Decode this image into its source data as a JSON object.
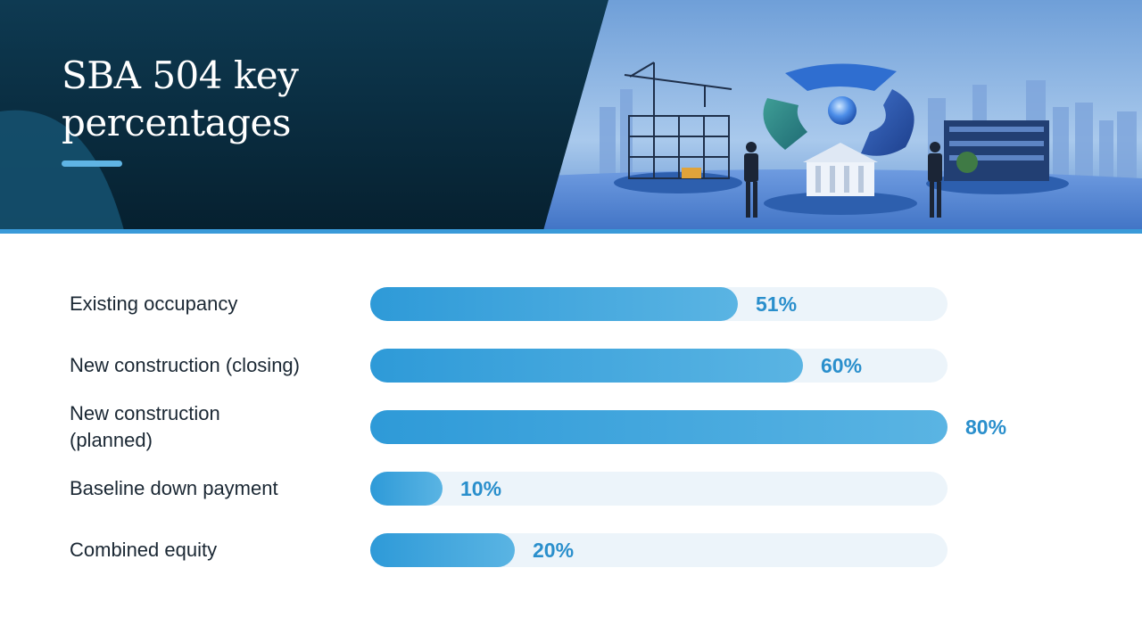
{
  "header": {
    "title": "SBA 504 key percentages"
  },
  "colors": {
    "header_dark": "#0c3349",
    "accent": "#3a9ad9",
    "bar_fill": "#2e9ad8",
    "bar_track": "#ecf4fa",
    "value_text": "#2a8fcc"
  },
  "illustration": {
    "icons": [
      "construction-crane-icon",
      "pie-chart-icon",
      "bank-building-icon",
      "office-building-icon",
      "businessman-icon",
      "city-skyline-icon"
    ]
  },
  "chart_data": {
    "type": "bar",
    "orientation": "horizontal",
    "title": "SBA 504 key percentages",
    "xlabel": "",
    "ylabel": "",
    "xlim": [
      0,
      80
    ],
    "grid": false,
    "legend": "none",
    "categories": [
      "Existing occupancy",
      "New construction (closing)",
      "New construction (planned)",
      "Baseline down payment",
      "Combined equity"
    ],
    "values": [
      51,
      60,
      80,
      10,
      20
    ],
    "value_labels": [
      "51%",
      "60%",
      "80%",
      "10%",
      "20%"
    ]
  }
}
